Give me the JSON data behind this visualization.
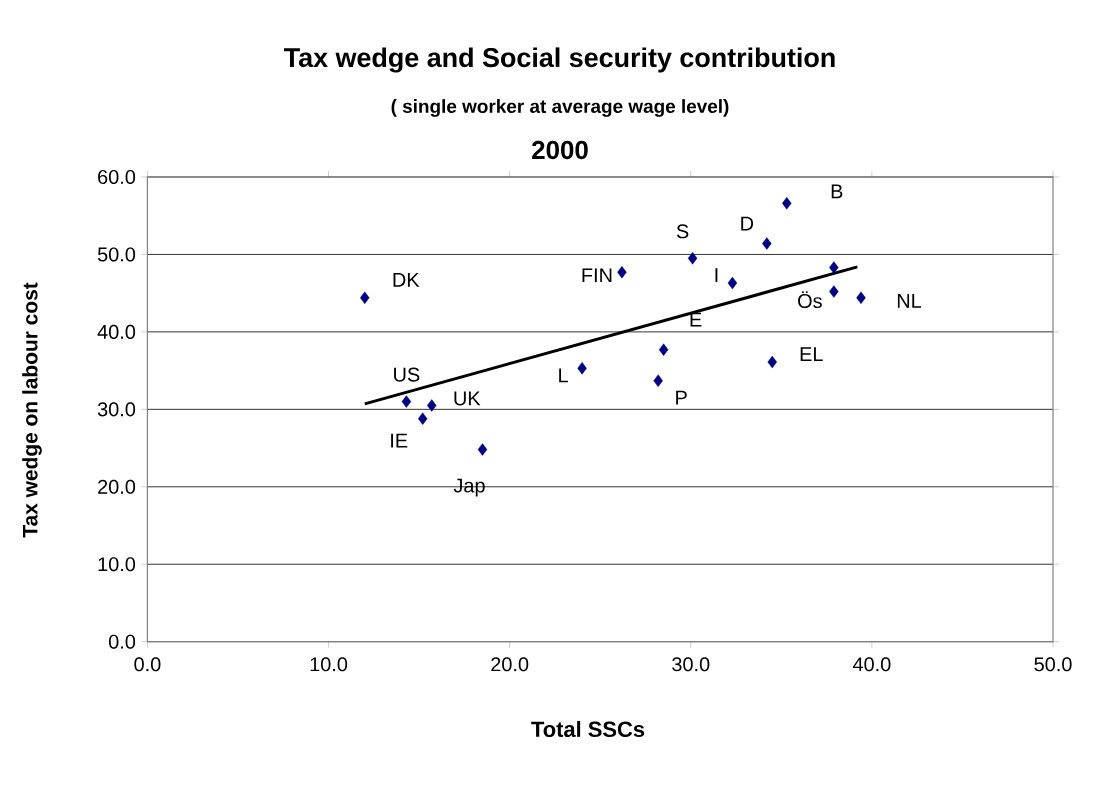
{
  "chart_data": {
    "type": "scatter",
    "title": "Tax wedge and Social security contribution",
    "subtitle": "( single worker at average wage level)",
    "xlabel": "Total SSCs",
    "ylabel": "Tax wedge on labour cost",
    "xlim": [
      0,
      50
    ],
    "ylim": [
      0,
      60
    ],
    "xticks": [
      {
        "value": 0,
        "label": "0.0"
      },
      {
        "value": 10,
        "label": "10.0"
      },
      {
        "value": 20,
        "label": "20.0"
      },
      {
        "value": 30,
        "label": "30.0"
      },
      {
        "value": 40,
        "label": "40.0"
      },
      {
        "value": 50,
        "label": "50.0"
      }
    ],
    "yticks": [
      {
        "value": 0,
        "label": "0.0"
      },
      {
        "value": 10,
        "label": "10.0"
      },
      {
        "value": 20,
        "label": "20.0"
      },
      {
        "value": 30,
        "label": "30.0"
      },
      {
        "value": 40,
        "label": "40.0"
      },
      {
        "value": 50,
        "label": "50.0"
      },
      {
        "value": 60,
        "label": "60.0"
      }
    ],
    "grid": "y",
    "series": [
      {
        "color": "#000080",
        "marker": "diamond",
        "x": [
          12.0,
          26.2,
          30.1,
          34.2,
          35.3,
          32.3,
          37.9,
          39.4,
          28.5,
          34.5,
          28.2,
          24.0,
          14.3,
          15.7,
          15.2,
          18.5,
          37.9
        ],
        "values": [
          44.4,
          47.7,
          49.5,
          51.4,
          56.6,
          46.3,
          45.2,
          44.4,
          37.7,
          36.1,
          33.7,
          35.3,
          31.0,
          30.5,
          28.8,
          24.8,
          48.3
        ]
      },
      {
        "type": "line",
        "color": "#000000",
        "marker": "none",
        "line_style": "solid",
        "x": [
          12.0,
          39.2
        ],
        "values": [
          30.7,
          48.4
        ]
      }
    ],
    "annotations": [
      {
        "text": "DK",
        "x": 12.0,
        "y": 44.4
      },
      {
        "text": "FIN",
        "x": 26.2,
        "y": 47.7
      },
      {
        "text": "S",
        "x": 30.1,
        "y": 49.5
      },
      {
        "text": "D",
        "x": 34.2,
        "y": 51.4
      },
      {
        "text": "B",
        "x": 35.3,
        "y": 56.6
      },
      {
        "text": "I",
        "x": 32.3,
        "y": 46.3
      },
      {
        "text": "Ös",
        "x": 37.9,
        "y": 45.2
      },
      {
        "text": "NL",
        "x": 39.4,
        "y": 44.4
      },
      {
        "text": "E",
        "x": 28.5,
        "y": 37.7
      },
      {
        "text": "EL",
        "x": 34.5,
        "y": 36.1
      },
      {
        "text": "P",
        "x": 28.2,
        "y": 33.7
      },
      {
        "text": "L",
        "x": 24.0,
        "y": 35.3
      },
      {
        "text": "US",
        "x": 14.3,
        "y": 31.0
      },
      {
        "text": "UK",
        "x": 15.7,
        "y": 30.5
      },
      {
        "text": "IE",
        "x": 15.2,
        "y": 28.8
      },
      {
        "text": "Jap",
        "x": 18.5,
        "y": 24.8
      },
      "2000"
    ]
  }
}
